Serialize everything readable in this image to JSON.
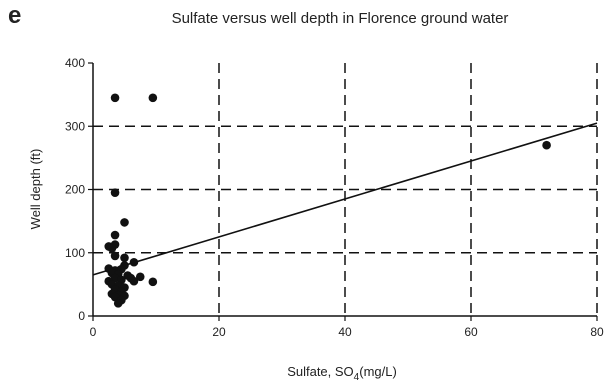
{
  "panel_label": "e",
  "chart_data": {
    "type": "scatter",
    "title": "Sulfate versus well depth in Florence ground water",
    "xlabel_main": "Sulfate, SO",
    "xlabel_sub": "4",
    "xlabel_unit": "(mg/L)",
    "ylabel": "Well depth (ft)",
    "xlim": [
      0,
      80
    ],
    "ylim": [
      0,
      400
    ],
    "x_ticks": [
      0,
      20,
      40,
      60,
      80
    ],
    "y_ticks": [
      0,
      100,
      200,
      300,
      400
    ],
    "grid": "dashed",
    "points": [
      {
        "x": 3.5,
        "y": 345
      },
      {
        "x": 9.5,
        "y": 345
      },
      {
        "x": 72,
        "y": 270
      },
      {
        "x": 3.5,
        "y": 195
      },
      {
        "x": 5,
        "y": 148
      },
      {
        "x": 3.5,
        "y": 128
      },
      {
        "x": 2.5,
        "y": 110
      },
      {
        "x": 3.5,
        "y": 113
      },
      {
        "x": 3,
        "y": 107
      },
      {
        "x": 3.5,
        "y": 95
      },
      {
        "x": 5,
        "y": 92
      },
      {
        "x": 6.5,
        "y": 85
      },
      {
        "x": 5,
        "y": 80
      },
      {
        "x": 2.5,
        "y": 75
      },
      {
        "x": 3.5,
        "y": 72
      },
      {
        "x": 4.5,
        "y": 74
      },
      {
        "x": 3,
        "y": 68
      },
      {
        "x": 4,
        "y": 66
      },
      {
        "x": 5.5,
        "y": 64
      },
      {
        "x": 7.5,
        "y": 62
      },
      {
        "x": 6,
        "y": 60
      },
      {
        "x": 3.5,
        "y": 60
      },
      {
        "x": 2.5,
        "y": 55
      },
      {
        "x": 4.5,
        "y": 57
      },
      {
        "x": 6.5,
        "y": 55
      },
      {
        "x": 9.5,
        "y": 54
      },
      {
        "x": 3,
        "y": 50
      },
      {
        "x": 4,
        "y": 48
      },
      {
        "x": 5,
        "y": 45
      },
      {
        "x": 3.5,
        "y": 42
      },
      {
        "x": 4.5,
        "y": 38
      },
      {
        "x": 3,
        "y": 35
      },
      {
        "x": 4,
        "y": 33
      },
      {
        "x": 5,
        "y": 32
      },
      {
        "x": 3.5,
        "y": 30
      },
      {
        "x": 4.5,
        "y": 25
      },
      {
        "x": 4,
        "y": 20
      }
    ],
    "trendline": {
      "x": [
        0,
        80
      ],
      "y": [
        65,
        305
      ]
    }
  }
}
